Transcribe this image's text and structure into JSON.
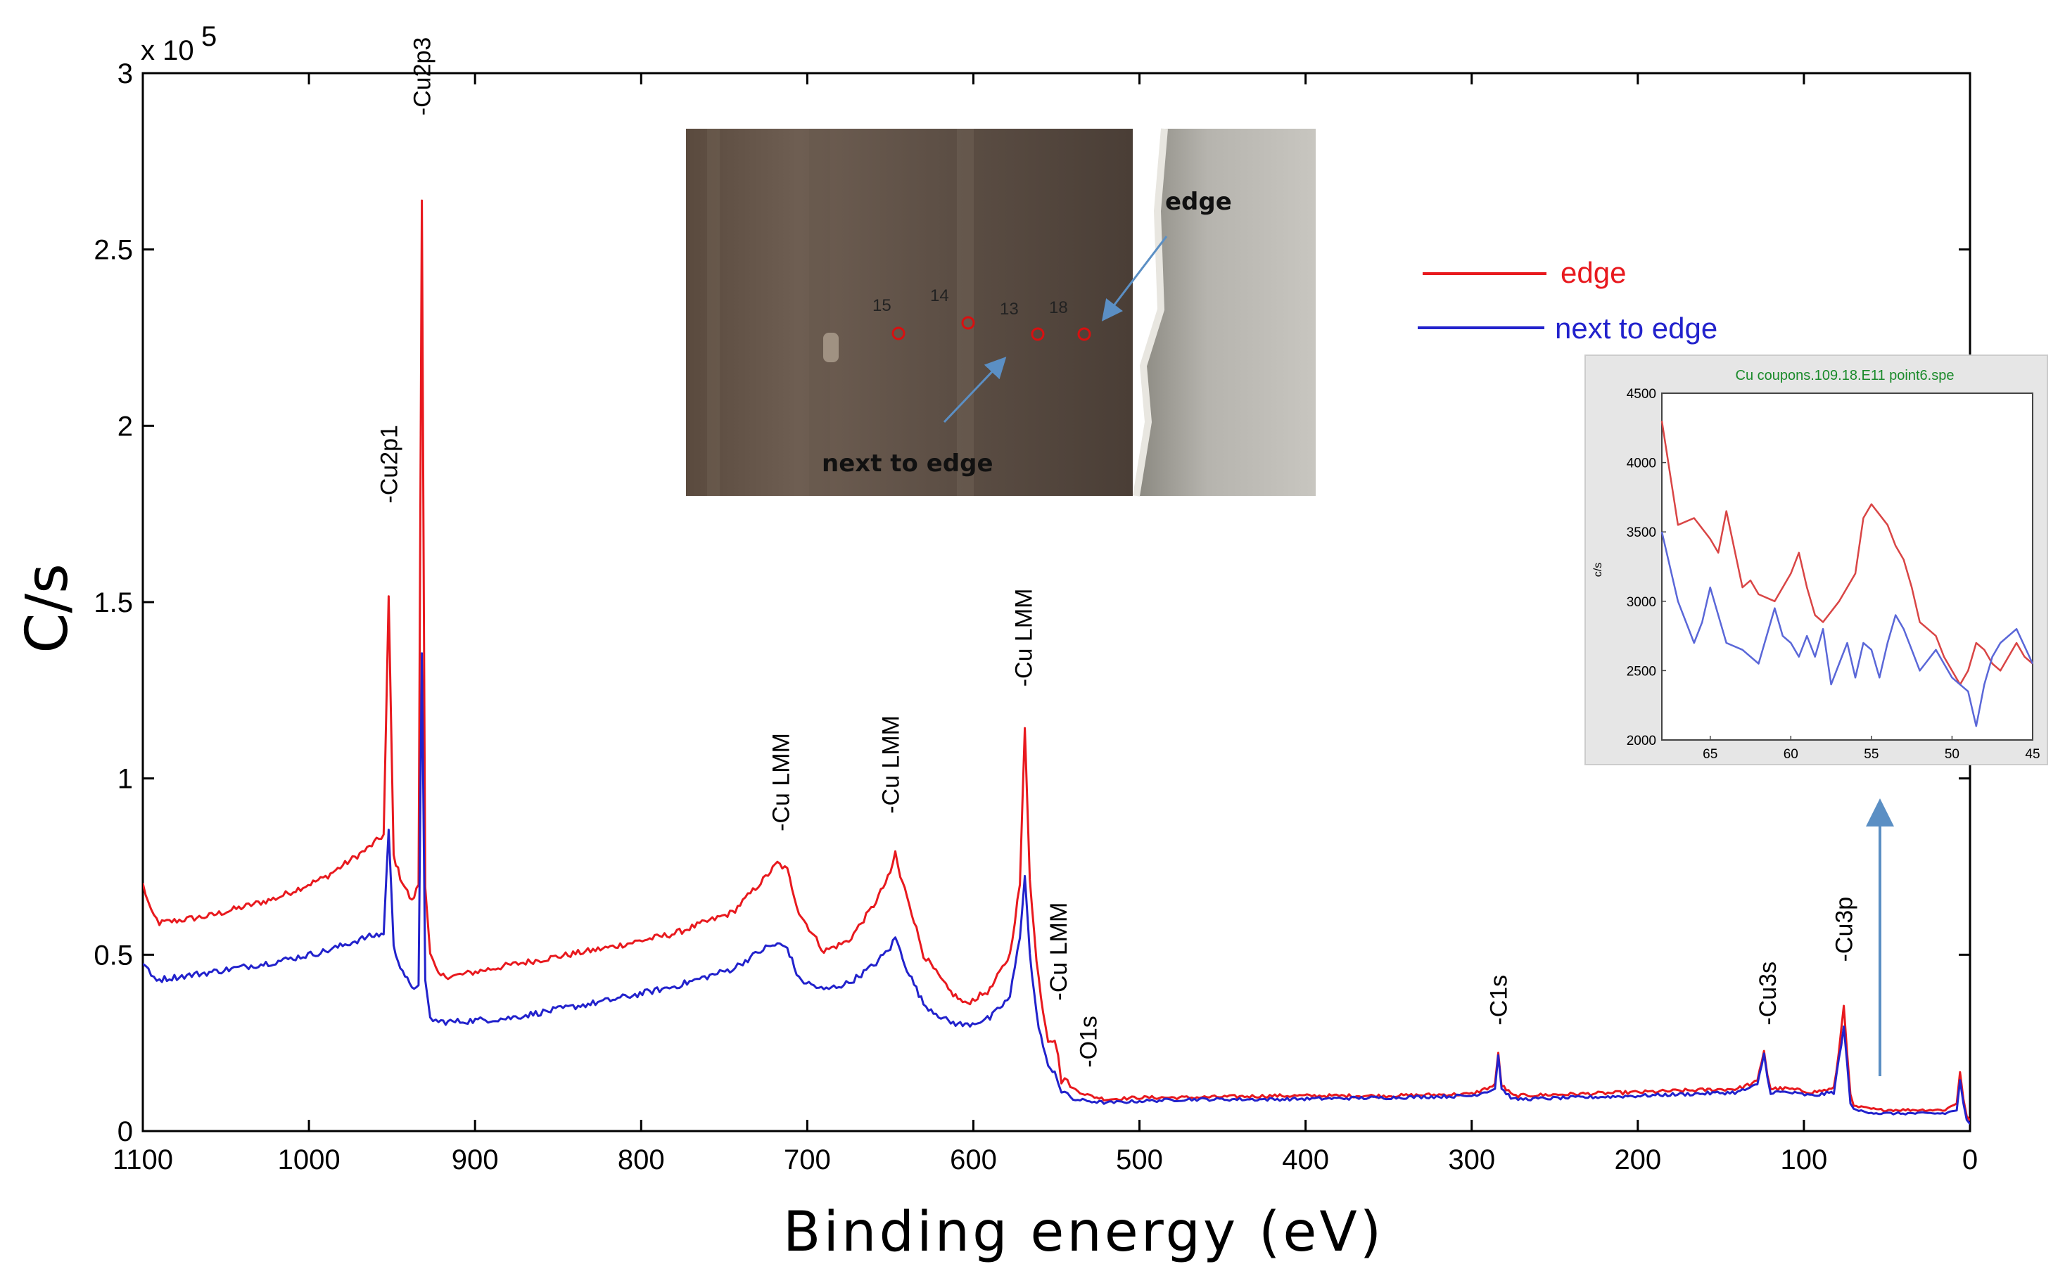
{
  "chart_data": [
    {
      "type": "line",
      "title": "",
      "xlabel": "Binding energy (eV)",
      "ylabel": "C/s",
      "y_scale_label": "x 10",
      "y_scale_exponent": "5",
      "xlim": [
        1100,
        0
      ],
      "ylim": [
        0,
        3
      ],
      "x_ticks": [
        1100,
        1000,
        900,
        800,
        700,
        600,
        500,
        400,
        300,
        200,
        100,
        0
      ],
      "y_ticks": [
        "0",
        "0.5",
        "1",
        "1.5",
        "2",
        "2.5",
        "3"
      ],
      "y_tick_values": [
        0,
        0.5,
        1,
        1.5,
        2,
        2.5,
        3
      ],
      "series": [
        {
          "name": "edge",
          "color": "#e8191e",
          "x": [
            1100,
            1095,
            1090,
            1060,
            1020,
            990,
            965,
            955,
            952,
            949,
            945,
            938,
            934,
            932,
            930,
            927,
            922,
            912,
            880,
            820,
            780,
            745,
            725,
            718,
            712,
            705,
            690,
            675,
            660,
            650,
            647,
            644,
            640,
            630,
            615,
            605,
            590,
            578,
            572,
            569,
            566,
            562,
            558,
            555,
            551,
            549,
            547,
            545,
            540,
            530,
            520,
            500,
            470,
            420,
            350,
            300,
            286,
            284,
            282,
            275,
            200,
            140,
            128,
            124,
            122,
            120,
            110,
            95,
            82,
            79,
            76,
            74,
            72,
            70,
            55,
            30,
            15,
            8,
            6,
            4,
            2,
            0
          ],
          "y": [
            0.7,
            0.62,
            0.59,
            0.61,
            0.66,
            0.72,
            0.8,
            0.84,
            1.51,
            0.78,
            0.72,
            0.65,
            0.7,
            2.64,
            0.7,
            0.5,
            0.44,
            0.44,
            0.47,
            0.52,
            0.56,
            0.62,
            0.72,
            0.76,
            0.74,
            0.62,
            0.51,
            0.54,
            0.64,
            0.73,
            0.79,
            0.72,
            0.67,
            0.5,
            0.4,
            0.36,
            0.4,
            0.5,
            0.7,
            1.14,
            0.72,
            0.48,
            0.34,
            0.26,
            0.26,
            0.21,
            0.14,
            0.15,
            0.12,
            0.1,
            0.09,
            0.095,
            0.095,
            0.1,
            0.1,
            0.105,
            0.13,
            0.22,
            0.13,
            0.1,
            0.11,
            0.12,
            0.14,
            0.23,
            0.16,
            0.12,
            0.12,
            0.11,
            0.12,
            0.22,
            0.36,
            0.23,
            0.1,
            0.07,
            0.06,
            0.06,
            0.06,
            0.08,
            0.17,
            0.09,
            0.04,
            0.03
          ]
        },
        {
          "name": "next to edge",
          "color": "#2222cc",
          "x": [
            1100,
            1095,
            1090,
            1060,
            1020,
            990,
            965,
            955,
            952,
            949,
            945,
            938,
            934,
            932,
            930,
            927,
            922,
            912,
            880,
            820,
            780,
            745,
            725,
            718,
            712,
            705,
            690,
            675,
            660,
            650,
            647,
            644,
            640,
            630,
            615,
            605,
            590,
            578,
            572,
            569,
            566,
            562,
            558,
            555,
            551,
            549,
            547,
            545,
            540,
            530,
            520,
            500,
            470,
            420,
            350,
            300,
            286,
            284,
            282,
            275,
            200,
            140,
            128,
            124,
            122,
            120,
            110,
            95,
            82,
            79,
            76,
            74,
            72,
            70,
            55,
            30,
            15,
            8,
            6,
            4,
            2,
            0
          ],
          "y": [
            0.48,
            0.44,
            0.43,
            0.45,
            0.48,
            0.51,
            0.55,
            0.56,
            0.86,
            0.52,
            0.47,
            0.4,
            0.42,
            1.35,
            0.42,
            0.32,
            0.31,
            0.31,
            0.32,
            0.37,
            0.41,
            0.46,
            0.52,
            0.53,
            0.52,
            0.43,
            0.4,
            0.42,
            0.47,
            0.52,
            0.55,
            0.51,
            0.46,
            0.36,
            0.31,
            0.3,
            0.32,
            0.38,
            0.55,
            0.73,
            0.5,
            0.33,
            0.24,
            0.18,
            0.17,
            0.14,
            0.11,
            0.11,
            0.09,
            0.085,
            0.08,
            0.085,
            0.09,
            0.09,
            0.095,
            0.1,
            0.12,
            0.22,
            0.12,
            0.09,
            0.1,
            0.11,
            0.13,
            0.22,
            0.15,
            0.11,
            0.11,
            0.1,
            0.11,
            0.2,
            0.29,
            0.2,
            0.08,
            0.06,
            0.05,
            0.05,
            0.05,
            0.06,
            0.14,
            0.08,
            0.03,
            0.02
          ]
        }
      ],
      "peak_labels": [
        {
          "text": "-Cu2p1",
          "x": 952,
          "y": 1.78
        },
        {
          "text": "-Cu2p3",
          "x": 932,
          "y": 2.88
        },
        {
          "text": "-Cu LMM",
          "x": 716,
          "y": 0.85
        },
        {
          "text": "-Cu LMM",
          "x": 650,
          "y": 0.9
        },
        {
          "text": "-Cu LMM",
          "x": 570,
          "y": 1.26
        },
        {
          "text": "-Cu LMM",
          "x": 549,
          "y": 0.37
        },
        {
          "text": "-O1s",
          "x": 531,
          "y": 0.18
        },
        {
          "text": "-C1s",
          "x": 284,
          "y": 0.3
        },
        {
          "text": "-Cu3s",
          "x": 122,
          "y": 0.3
        },
        {
          "text": "-Cu3p",
          "x": 76,
          "y": 0.48
        }
      ],
      "legend": "right",
      "grid": false
    },
    {
      "type": "line",
      "title": "Cu coupons.109.18.E11 point6.spe",
      "xlabel": "",
      "ylabel": "c/s",
      "xlim": [
        68,
        45
      ],
      "ylim": [
        2000,
        4500
      ],
      "x_ticks": [
        65,
        60,
        55,
        50,
        45
      ],
      "y_ticks": [
        2000,
        2500,
        3000,
        3500,
        4000,
        4500
      ],
      "series": [
        {
          "name": "edge",
          "color": "#d94545",
          "x": [
            68,
            67,
            66,
            65,
            64.5,
            64,
            63,
            62.5,
            62,
            61,
            60,
            59.5,
            59,
            58.5,
            58,
            57,
            56,
            55.5,
            55,
            54,
            53.5,
            53,
            52.5,
            52,
            51.5,
            51,
            50.5,
            50,
            49.5,
            49,
            48.5,
            48,
            47.5,
            47,
            46,
            45.5,
            45
          ],
          "y": [
            4300,
            3550,
            3600,
            3450,
            3350,
            3650,
            3100,
            3150,
            3050,
            3000,
            3200,
            3350,
            3100,
            2900,
            2850,
            3000,
            3200,
            3600,
            3700,
            3550,
            3400,
            3300,
            3100,
            2850,
            2800,
            2750,
            2600,
            2500,
            2400,
            2500,
            2700,
            2650,
            2550,
            2500,
            2700,
            2600,
            2550
          ]
        },
        {
          "name": "next to edge",
          "color": "#5a67d8",
          "x": [
            68,
            67,
            66,
            65.5,
            65,
            64,
            63,
            62,
            61,
            60.5,
            60,
            59.5,
            59,
            58.5,
            58,
            57.5,
            57,
            56.5,
            56,
            55.5,
            55,
            54.5,
            54,
            53.5,
            53,
            52.5,
            52,
            51,
            50,
            49,
            48.5,
            48,
            47.5,
            47,
            46,
            45
          ],
          "y": [
            3500,
            3000,
            2700,
            2850,
            3100,
            2700,
            2650,
            2550,
            2950,
            2750,
            2700,
            2600,
            2750,
            2600,
            2800,
            2400,
            2550,
            2700,
            2450,
            2700,
            2650,
            2450,
            2700,
            2900,
            2800,
            2650,
            2500,
            2650,
            2450,
            2350,
            2100,
            2400,
            2600,
            2700,
            2800,
            2550
          ]
        }
      ]
    }
  ],
  "photo_inset": {
    "label_edge": "edge",
    "label_next": "next to edge",
    "points": [
      "15",
      "14",
      "13",
      "18"
    ]
  },
  "legend": {
    "edge": "edge",
    "next_to_edge": "next to edge"
  },
  "colors": {
    "edge": "#e8191e",
    "next_to_edge": "#2222cc",
    "inset_title": "#1a8a2a",
    "arrow": "#5b8fc4"
  }
}
